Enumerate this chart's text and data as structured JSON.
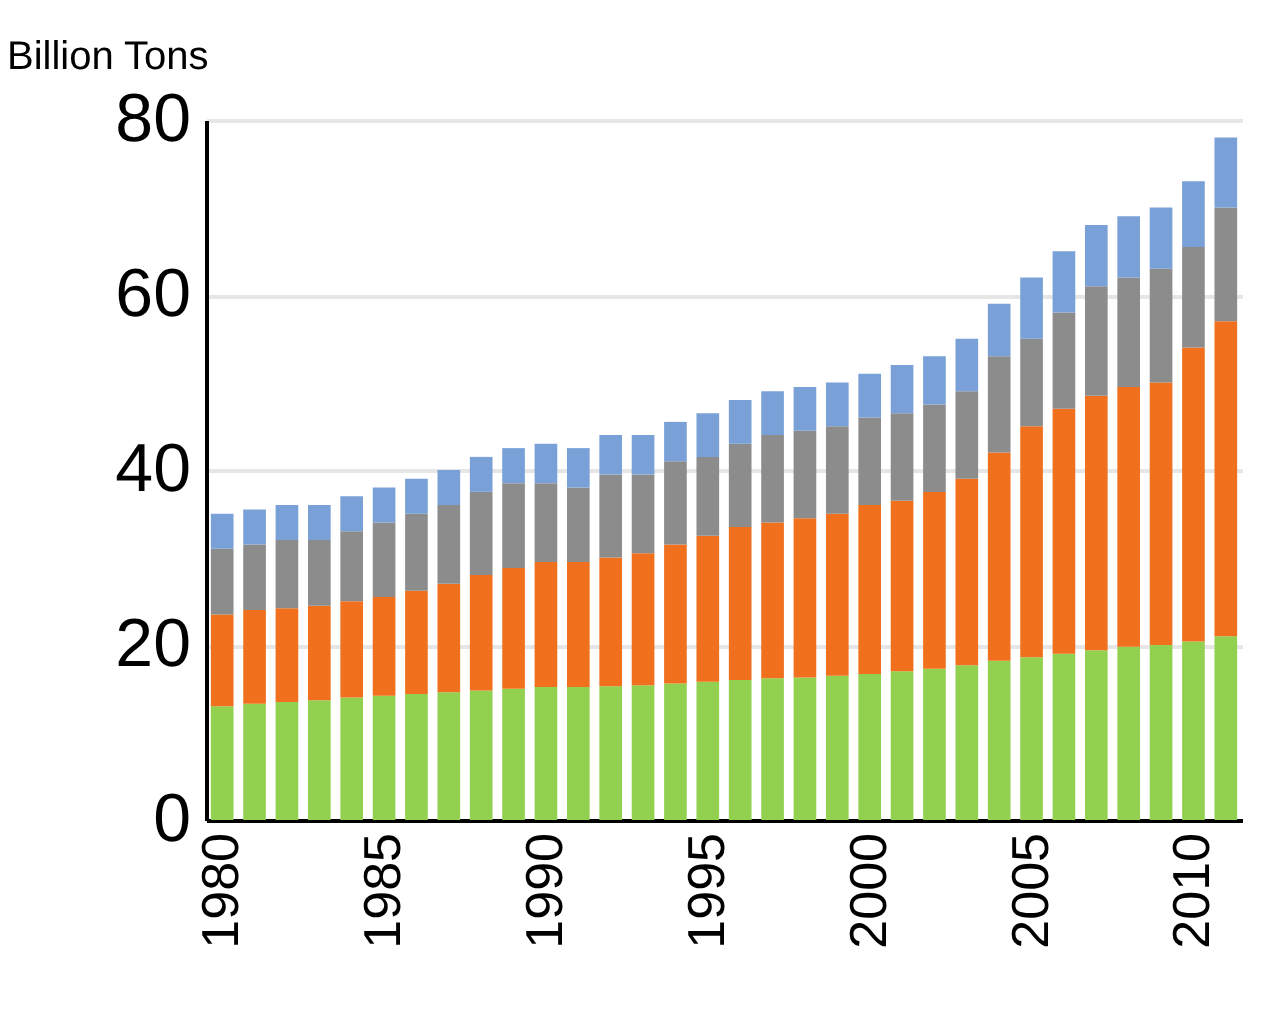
{
  "chart_data": {
    "type": "bar",
    "stacked": true,
    "ylabel": "Billion Tons",
    "categories": [
      "1980",
      null,
      null,
      null,
      null,
      "1985",
      null,
      null,
      null,
      null,
      "1990",
      null,
      null,
      null,
      null,
      "1995",
      null,
      null,
      null,
      null,
      "2000",
      null,
      null,
      null,
      null,
      "2005",
      null,
      null,
      null,
      null,
      "2010",
      null
    ],
    "series": [
      {
        "color": "#92d050",
        "values": [
          13,
          13.3,
          13.5,
          13.7,
          14,
          14.2,
          14.4,
          14.6,
          14.8,
          15,
          15.2,
          15.2,
          15.3,
          15.4,
          15.6,
          15.8,
          16,
          16.2,
          16.3,
          16.5,
          16.7,
          17,
          17.3,
          17.7,
          18.2,
          18.6,
          19,
          19.4,
          19.8,
          20,
          20.4,
          21
        ]
      },
      {
        "color": "#f0701e",
        "values": [
          10.5,
          10.7,
          10.7,
          10.8,
          11,
          11.3,
          11.8,
          12.4,
          13.2,
          13.8,
          14.3,
          14.3,
          14.7,
          15.1,
          15.9,
          16.7,
          17.5,
          17.8,
          18.2,
          18.5,
          19.3,
          19.5,
          20.2,
          21.3,
          23.8,
          26.4,
          28,
          29.1,
          29.7,
          30,
          33.6,
          36
        ]
      },
      {
        "color": "#8c8c8c",
        "values": [
          7.5,
          7.5,
          7.8,
          7.5,
          8,
          8.5,
          8.8,
          9,
          9.5,
          9.7,
          9,
          8.5,
          9.5,
          9,
          9.5,
          9,
          9.5,
          10,
          10,
          10,
          10,
          10,
          10,
          10,
          11,
          10,
          11,
          12.5,
          12.5,
          13,
          11.5,
          13
        ]
      },
      {
        "color": "#7aa0d8",
        "values": [
          4,
          4,
          4,
          4,
          4,
          4,
          4,
          4,
          4,
          4,
          4.5,
          4.5,
          4.5,
          4.5,
          4.5,
          5,
          5,
          5,
          5,
          5,
          5,
          5.5,
          5.5,
          6,
          6,
          7,
          7,
          7,
          7,
          7,
          7.5,
          8
        ]
      }
    ],
    "ylim": [
      0,
      80
    ],
    "yticks": [
      0,
      20,
      40,
      60,
      80
    ],
    "grid": "y"
  }
}
